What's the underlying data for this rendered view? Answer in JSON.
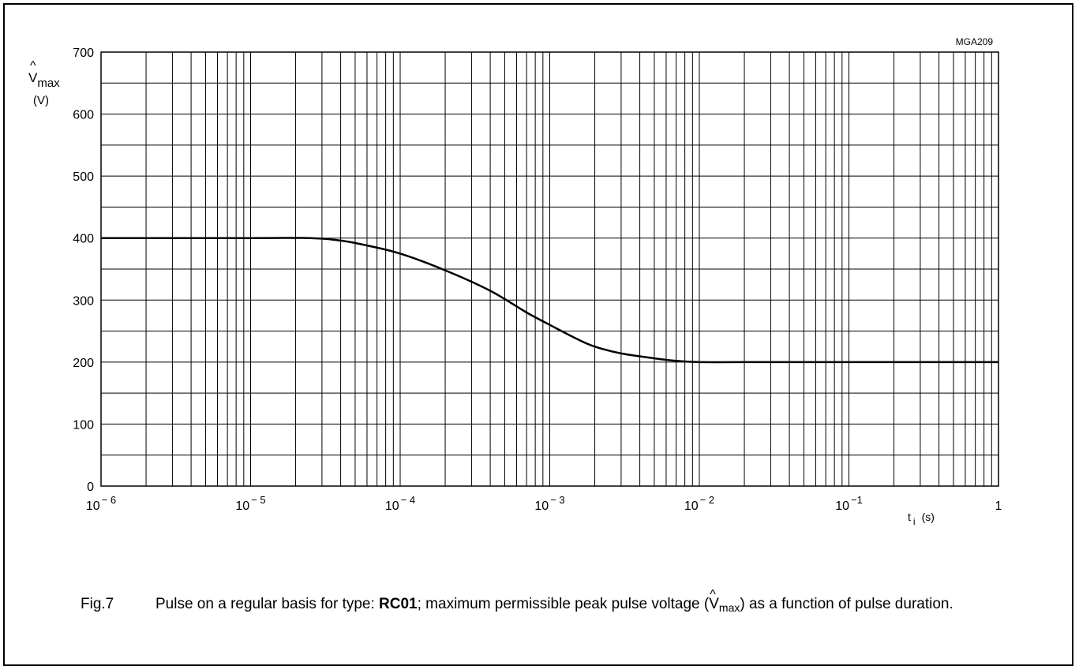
{
  "chart_data": {
    "type": "line",
    "code": "MGA209",
    "y_axis": {
      "symbol": "V",
      "hat": "^",
      "subscript": "max",
      "unit": "(V)",
      "range": [
        0,
        700
      ],
      "ticks": [
        0,
        100,
        200,
        300,
        400,
        500,
        600,
        700
      ],
      "minor_step": 50
    },
    "x_axis": {
      "scale": "log",
      "range": [
        1e-06,
        1
      ],
      "decade_ticks": [
        {
          "base": "10",
          "exp": "− 6"
        },
        {
          "base": "10",
          "exp": "− 5"
        },
        {
          "base": "10",
          "exp": "− 4"
        },
        {
          "base": "10",
          "exp": "− 3"
        },
        {
          "base": "10",
          "exp": "− 2"
        },
        {
          "base": "10",
          "exp": "−1"
        },
        {
          "base": "1",
          "exp": ""
        }
      ],
      "label": "t",
      "label_sub": "i",
      "unit": "(s)"
    },
    "grid": true,
    "series": [
      {
        "x": [
          1e-06,
          1e-05,
          2.5e-05,
          4e-05,
          6e-05,
          0.0001,
          0.0002,
          0.0004,
          0.0007,
          0.001,
          0.0015,
          0.002,
          0.003,
          0.005,
          0.007,
          0.01,
          0.02,
          0.1,
          1
        ],
        "y": [
          400,
          400,
          400,
          396,
          388,
          375,
          348,
          315,
          280,
          260,
          238,
          225,
          214,
          206,
          202,
          200,
          200,
          200,
          200
        ]
      }
    ]
  },
  "caption": {
    "figure": "Fig.7",
    "text_before": "Pulse on a regular basis for type: ",
    "type_bold": "RC01",
    "text_middle": "; maximum permissible peak pulse voltage (",
    "v_symbol": "V",
    "v_hat": "^",
    "v_sub": "max",
    "text_after": ") as a function of pulse duration."
  }
}
